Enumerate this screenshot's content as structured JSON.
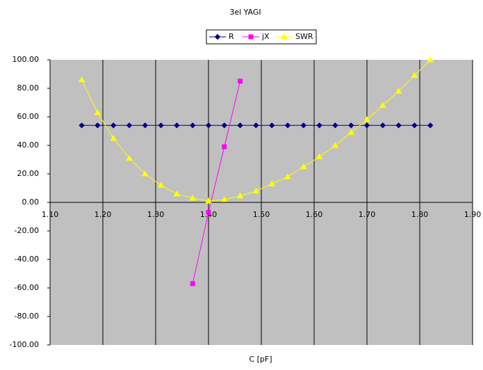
{
  "chart_data": {
    "type": "line",
    "title": "3el YAGI",
    "x_label": "C [pF]",
    "x": [
      1.16,
      1.19,
      1.22,
      1.25,
      1.28,
      1.31,
      1.34,
      1.37,
      1.4,
      1.43,
      1.46,
      1.49,
      1.52,
      1.55,
      1.58,
      1.61,
      1.64,
      1.67,
      1.7,
      1.73,
      1.76,
      1.79,
      1.82
    ],
    "series": [
      {
        "name": "R",
        "color": "#000080",
        "marker": "diamond",
        "values": [
          54,
          54,
          54,
          54,
          54,
          54,
          54,
          54,
          54,
          54,
          54,
          54,
          54,
          54,
          54,
          54,
          54,
          54,
          54,
          54,
          54,
          54,
          54
        ]
      },
      {
        "name": "jX",
        "color": "#ff00ff",
        "marker": "square",
        "values": [
          null,
          null,
          null,
          null,
          null,
          null,
          null,
          -57,
          -7,
          39,
          85,
          null,
          null,
          null,
          null,
          null,
          null,
          null,
          null,
          null,
          null,
          null,
          null
        ]
      },
      {
        "name": "SWR",
        "color": "#ffff00",
        "marker": "triangle",
        "values": [
          86,
          63,
          45,
          31,
          20,
          12,
          6,
          3,
          1,
          2,
          4.5,
          8,
          13,
          18,
          25,
          32,
          40,
          49,
          58,
          68,
          78,
          89,
          100
        ]
      }
    ],
    "xlim": [
      1.1,
      1.9
    ],
    "xticks": [
      {
        "value": 1.1,
        "label": "1.10"
      },
      {
        "value": 1.2,
        "label": "1.20"
      },
      {
        "value": 1.3,
        "label": "1.30"
      },
      {
        "value": 1.4,
        "label": "1.40"
      },
      {
        "value": 1.5,
        "label": "1.50"
      },
      {
        "value": 1.6,
        "label": "1.60"
      },
      {
        "value": 1.7,
        "label": "1.70"
      },
      {
        "value": 1.8,
        "label": "1.80"
      },
      {
        "value": 1.9,
        "label": "1.90"
      }
    ],
    "ylim": [
      -100,
      100
    ],
    "yticks": [
      {
        "value": -100,
        "label": "-100.00"
      },
      {
        "value": -80,
        "label": "-80.00"
      },
      {
        "value": -60,
        "label": "-60.00"
      },
      {
        "value": -40,
        "label": "-40.00"
      },
      {
        "value": -20,
        "label": "-20.00"
      },
      {
        "value": 0,
        "label": "0.00"
      },
      {
        "value": 20,
        "label": "20.00"
      },
      {
        "value": 40,
        "label": "40.00"
      },
      {
        "value": 60,
        "label": "60.00"
      },
      {
        "value": 80,
        "label": "80.00"
      },
      {
        "value": 100,
        "label": "100.00"
      }
    ],
    "grid": "x",
    "background": "#c0c0c0",
    "legend": "top"
  }
}
